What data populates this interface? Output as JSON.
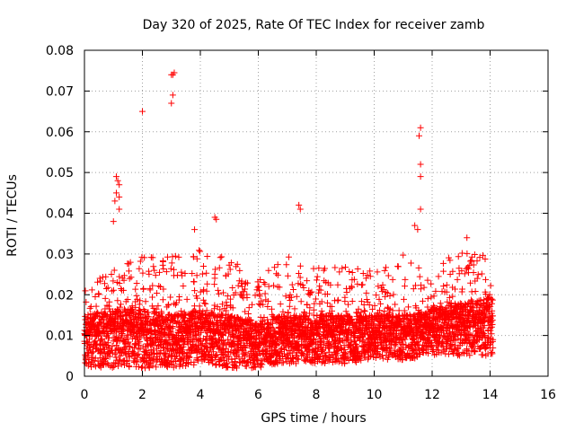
{
  "chart_data": {
    "type": "scatter",
    "title": "Day 320 of 2025, Rate Of TEC Index for receiver zamb",
    "xlabel": "GPS time / hours",
    "ylabel": "ROTI / TECUs",
    "xlim": [
      0,
      16
    ],
    "ylim": [
      0,
      0.08
    ],
    "x_ticks": [
      "0",
      "2",
      "4",
      "6",
      "8",
      "10",
      "12",
      "14",
      "16"
    ],
    "y_ticks": [
      "0",
      "0.01",
      "0.02",
      "0.03",
      "0.04",
      "0.05",
      "0.06",
      "0.07",
      "0.08"
    ],
    "x_tick_values": [
      0,
      2,
      4,
      6,
      8,
      10,
      12,
      14,
      16
    ],
    "y_tick_values": [
      0,
      0.01,
      0.02,
      0.03,
      0.04,
      0.05,
      0.06,
      0.07,
      0.08
    ],
    "grid": true,
    "marker": "+",
    "color": "#ff0000",
    "data_x_range": [
      0,
      14.1
    ],
    "envelope": {
      "x": [
        0,
        1,
        2,
        3,
        4,
        5,
        6,
        7,
        8,
        9,
        10,
        11,
        12,
        13,
        14.1
      ],
      "mean": [
        0.01,
        0.011,
        0.011,
        0.01,
        0.011,
        0.01,
        0.009,
        0.01,
        0.01,
        0.01,
        0.01,
        0.01,
        0.011,
        0.012,
        0.013
      ],
      "upper": [
        0.022,
        0.026,
        0.03,
        0.03,
        0.031,
        0.029,
        0.024,
        0.03,
        0.028,
        0.027,
        0.026,
        0.03,
        0.027,
        0.031,
        0.03
      ],
      "lower": [
        0.002,
        0.002,
        0.002,
        0.002,
        0.003,
        0.002,
        0.002,
        0.003,
        0.003,
        0.003,
        0.004,
        0.004,
        0.005,
        0.005,
        0.005
      ]
    },
    "outliers": [
      {
        "x": 1.1,
        "y": 0.049
      },
      {
        "x": 1.15,
        "y": 0.048
      },
      {
        "x": 1.2,
        "y": 0.047
      },
      {
        "x": 1.1,
        "y": 0.045
      },
      {
        "x": 1.2,
        "y": 0.044
      },
      {
        "x": 1.05,
        "y": 0.043
      },
      {
        "x": 1.2,
        "y": 0.041
      },
      {
        "x": 1.0,
        "y": 0.038
      },
      {
        "x": 2.0,
        "y": 0.065
      },
      {
        "x": 3.0,
        "y": 0.074
      },
      {
        "x": 3.05,
        "y": 0.074
      },
      {
        "x": 3.1,
        "y": 0.0745
      },
      {
        "x": 3.05,
        "y": 0.069
      },
      {
        "x": 3.0,
        "y": 0.067
      },
      {
        "x": 4.5,
        "y": 0.039
      },
      {
        "x": 4.55,
        "y": 0.0385
      },
      {
        "x": 3.8,
        "y": 0.036
      },
      {
        "x": 7.4,
        "y": 0.042
      },
      {
        "x": 7.45,
        "y": 0.041
      },
      {
        "x": 11.6,
        "y": 0.061
      },
      {
        "x": 11.55,
        "y": 0.059
      },
      {
        "x": 11.6,
        "y": 0.052
      },
      {
        "x": 11.6,
        "y": 0.049
      },
      {
        "x": 11.6,
        "y": 0.041
      },
      {
        "x": 11.4,
        "y": 0.037
      },
      {
        "x": 11.5,
        "y": 0.036
      },
      {
        "x": 13.2,
        "y": 0.034
      }
    ]
  }
}
